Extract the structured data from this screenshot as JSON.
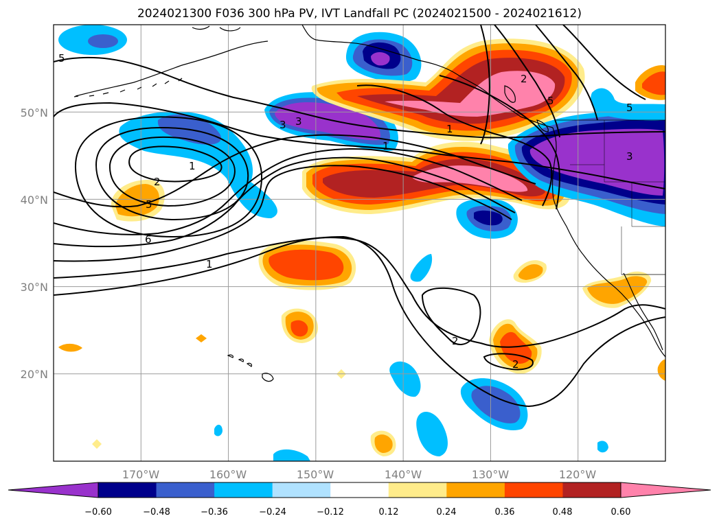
{
  "title": "2024021300 F036 300 hPa PV, IVT Landfall PC (2024021500 - 2024021612)",
  "map": {
    "projection": "PlateCarree",
    "lon_range": [
      -180,
      -110
    ],
    "lat_range": [
      10,
      60
    ],
    "lon_ticks": [
      {
        "value": -170,
        "label": "170°W"
      },
      {
        "value": -160,
        "label": "160°W"
      },
      {
        "value": -150,
        "label": "150°W"
      },
      {
        "value": -140,
        "label": "140°W"
      },
      {
        "value": -130,
        "label": "130°W"
      },
      {
        "value": -120,
        "label": "120°W"
      }
    ],
    "lat_ticks": [
      {
        "value": 20,
        "label": "20°N"
      },
      {
        "value": 30,
        "label": "30°N"
      },
      {
        "value": 40,
        "label": "40°N"
      },
      {
        "value": 50,
        "label": "50°N"
      }
    ],
    "grid": true,
    "contour_labels": [
      "5",
      "1",
      "2",
      "5",
      "6",
      "1",
      "3",
      "3",
      "1",
      "2",
      "5",
      "3",
      "5",
      "2",
      "2",
      "1"
    ]
  },
  "colorbar": {
    "orientation": "horizontal",
    "extend": "both",
    "colors": [
      "#9932CC",
      "#00008B",
      "#3A5FCD",
      "#00BFFF",
      "#B0E2FF",
      "#FFFFFF",
      "#FFEC8B",
      "#FFA500",
      "#FF4500",
      "#B22222",
      "#FF82AB"
    ],
    "tick_labels": [
      "−0.60",
      "−0.48",
      "−0.36",
      "−0.24",
      "−0.12",
      "0.12",
      "0.24",
      "0.36",
      "0.48",
      "0.60"
    ]
  }
}
